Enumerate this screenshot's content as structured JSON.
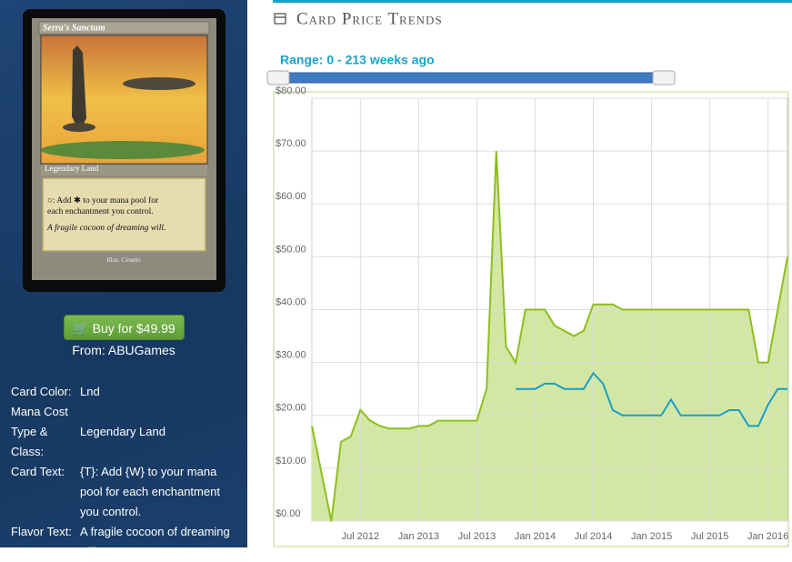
{
  "card_image": {
    "name": "Serra's Sanctum",
    "type_line": "Legendary Land",
    "rules_text": [
      "○: Add ✱ to your mana pool for",
      "each enchantment you control."
    ],
    "flavor_text": "A fragile cocoon of dreaming will.",
    "artist": "Illus. Ciruelo"
  },
  "buy_button": "Buy for $49.99",
  "seller": "From: ABUGames",
  "details": [
    {
      "label": "Card Color:",
      "value": "Lnd"
    },
    {
      "label": "Mana Cost"
    },
    {
      "label": "Type & Class:",
      "value": "Legendary Land"
    },
    {
      "label": "Card Text:",
      "value": "{T}: Add {W} to your mana pool for each enchantment you control."
    },
    {
      "label": "Flavor Text:",
      "value": "A fragile cocoon of dreaming will."
    }
  ],
  "section_title": "Card Price Trends",
  "range_label": "Range: 0 - 213 weeks ago",
  "chart_data": {
    "type": "line",
    "x": [
      "2012-02",
      "2012-03",
      "2012-04",
      "2012-05",
      "2012-06",
      "2012-07",
      "2012-08",
      "2012-09",
      "2012-10",
      "2012-11",
      "2012-12",
      "2013-01",
      "2013-02",
      "2013-03",
      "2013-04",
      "2013-05",
      "2013-06",
      "2013-07",
      "2013-08",
      "2013-09",
      "2013-10",
      "2013-11",
      "2013-12",
      "2014-01",
      "2014-02",
      "2014-03",
      "2014-04",
      "2014-05",
      "2014-06",
      "2014-07",
      "2014-08",
      "2014-09",
      "2014-10",
      "2014-11",
      "2014-12",
      "2015-01",
      "2015-02",
      "2015-03",
      "2015-04",
      "2015-05",
      "2015-06",
      "2015-07",
      "2015-08",
      "2015-09",
      "2015-10",
      "2015-11",
      "2015-12",
      "2016-01",
      "2016-02",
      "2016-03"
    ],
    "series": [
      {
        "color": "#8dbf1e",
        "fill": "#d3e7a4",
        "values": [
          18,
          9,
          0,
          15,
          16,
          21,
          19,
          18,
          17.5,
          17.5,
          17.5,
          18,
          18,
          19,
          19,
          19,
          19,
          19,
          25,
          70,
          33,
          30,
          40,
          40,
          40,
          37,
          36,
          35,
          36,
          41,
          41,
          41,
          40,
          40,
          40,
          40,
          40,
          40,
          40,
          40,
          40,
          40,
          40,
          40,
          40,
          40,
          30,
          30,
          40,
          50
        ]
      },
      {
        "color": "#1a9fc4",
        "values": [
          null,
          null,
          null,
          null,
          null,
          null,
          null,
          null,
          null,
          null,
          null,
          null,
          null,
          null,
          null,
          null,
          null,
          null,
          null,
          null,
          null,
          25,
          25,
          25,
          26,
          26,
          25,
          25,
          25,
          28,
          26,
          21,
          20,
          20,
          20,
          20,
          20,
          23,
          20,
          20,
          20,
          20,
          20,
          21,
          21,
          18,
          18,
          22,
          25,
          25
        ]
      }
    ],
    "xlim": [
      "2012-02",
      "2016-03"
    ],
    "xticks": [
      {
        "value": "2012-07",
        "label": "Jul 2012"
      },
      {
        "value": "2013-01",
        "label": "Jan 2013"
      },
      {
        "value": "2013-07",
        "label": "Jul 2013"
      },
      {
        "value": "2014-01",
        "label": "Jan 2014"
      },
      {
        "value": "2014-07",
        "label": "Jul 2014"
      },
      {
        "value": "2015-01",
        "label": "Jan 2015"
      },
      {
        "value": "2015-07",
        "label": "Jul 2015"
      },
      {
        "value": "2016-01",
        "label": "Jan 2016"
      }
    ],
    "ylim": [
      0,
      80
    ],
    "yticks": [
      {
        "value": 0,
        "label": "$0.00"
      },
      {
        "value": 10,
        "label": "$10.00"
      },
      {
        "value": 20,
        "label": "$20.00"
      },
      {
        "value": 30,
        "label": "$30.00"
      },
      {
        "value": 40,
        "label": "$40.00"
      },
      {
        "value": 50,
        "label": "$50.00"
      },
      {
        "value": 60,
        "label": "$60.00"
      },
      {
        "value": 70,
        "label": "$70.00"
      },
      {
        "value": 80,
        "label": "$80.00"
      }
    ],
    "grid": true
  }
}
